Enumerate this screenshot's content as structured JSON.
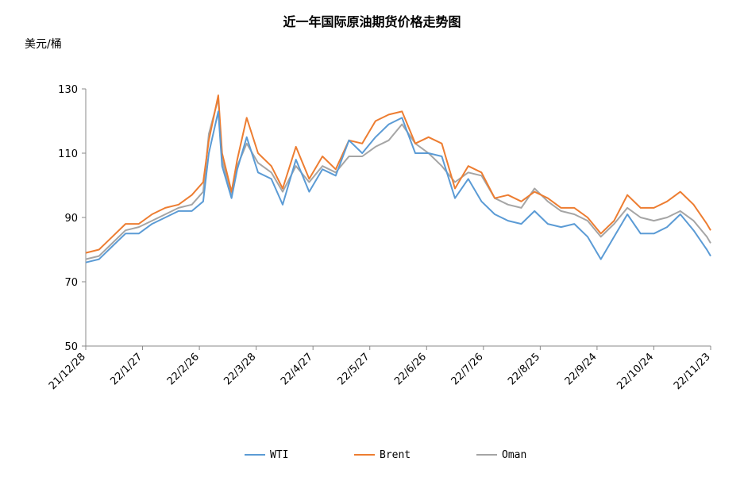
{
  "chart_data": {
    "type": "line",
    "title": "近一年国际原油期货价格走势图",
    "ylabel": "美元/桶",
    "xlabel": "",
    "ylim": [
      50,
      130
    ],
    "yticks": [
      50,
      70,
      90,
      110,
      130
    ],
    "xlim": [
      "2021-12-28",
      "2022-11-23"
    ],
    "xticks": [
      "21/12/28",
      "22/1/27",
      "22/2/26",
      "22/3/28",
      "22/4/27",
      "22/5/27",
      "22/6/26",
      "22/7/26",
      "22/8/25",
      "22/9/24",
      "22/10/24",
      "22/11/23"
    ],
    "grid": false,
    "legend_position": "bottom",
    "series": [
      {
        "name": "WTI",
        "color": "#5B9BD5",
        "points": [
          [
            "2021-12-28",
            76
          ],
          [
            "2022-01-04",
            77
          ],
          [
            "2022-01-11",
            81
          ],
          [
            "2022-01-18",
            85
          ],
          [
            "2022-01-25",
            85
          ],
          [
            "2022-02-01",
            88
          ],
          [
            "2022-02-08",
            90
          ],
          [
            "2022-02-15",
            92
          ],
          [
            "2022-02-22",
            92
          ],
          [
            "2022-02-28",
            95
          ],
          [
            "2022-03-03",
            110
          ],
          [
            "2022-03-08",
            123
          ],
          [
            "2022-03-10",
            106
          ],
          [
            "2022-03-15",
            96
          ],
          [
            "2022-03-18",
            105
          ],
          [
            "2022-03-23",
            115
          ],
          [
            "2022-03-29",
            104
          ],
          [
            "2022-04-05",
            102
          ],
          [
            "2022-04-11",
            94
          ],
          [
            "2022-04-18",
            108
          ],
          [
            "2022-04-25",
            98
          ],
          [
            "2022-05-02",
            105
          ],
          [
            "2022-05-09",
            103
          ],
          [
            "2022-05-16",
            114
          ],
          [
            "2022-05-23",
            110
          ],
          [
            "2022-05-30",
            115
          ],
          [
            "2022-06-06",
            119
          ],
          [
            "2022-06-13",
            121
          ],
          [
            "2022-06-20",
            110
          ],
          [
            "2022-06-27",
            110
          ],
          [
            "2022-07-04",
            109
          ],
          [
            "2022-07-11",
            96
          ],
          [
            "2022-07-18",
            102
          ],
          [
            "2022-07-25",
            95
          ],
          [
            "2022-08-01",
            91
          ],
          [
            "2022-08-08",
            89
          ],
          [
            "2022-08-15",
            88
          ],
          [
            "2022-08-22",
            92
          ],
          [
            "2022-08-29",
            88
          ],
          [
            "2022-09-05",
            87
          ],
          [
            "2022-09-12",
            88
          ],
          [
            "2022-09-19",
            84
          ],
          [
            "2022-09-26",
            77
          ],
          [
            "2022-10-03",
            84
          ],
          [
            "2022-10-10",
            91
          ],
          [
            "2022-10-17",
            85
          ],
          [
            "2022-10-24",
            85
          ],
          [
            "2022-10-31",
            87
          ],
          [
            "2022-11-07",
            91
          ],
          [
            "2022-11-14",
            86
          ],
          [
            "2022-11-21",
            80
          ],
          [
            "2022-11-23",
            78
          ]
        ]
      },
      {
        "name": "Brent",
        "color": "#ED7D31",
        "points": [
          [
            "2021-12-28",
            79
          ],
          [
            "2022-01-04",
            80
          ],
          [
            "2022-01-11",
            84
          ],
          [
            "2022-01-18",
            88
          ],
          [
            "2022-01-25",
            88
          ],
          [
            "2022-02-01",
            91
          ],
          [
            "2022-02-08",
            93
          ],
          [
            "2022-02-15",
            94
          ],
          [
            "2022-02-22",
            97
          ],
          [
            "2022-02-28",
            101
          ],
          [
            "2022-03-03",
            114
          ],
          [
            "2022-03-08",
            128
          ],
          [
            "2022-03-10",
            110
          ],
          [
            "2022-03-15",
            98
          ],
          [
            "2022-03-18",
            108
          ],
          [
            "2022-03-23",
            121
          ],
          [
            "2022-03-29",
            110
          ],
          [
            "2022-04-05",
            106
          ],
          [
            "2022-04-11",
            99
          ],
          [
            "2022-04-18",
            112
          ],
          [
            "2022-04-25",
            102
          ],
          [
            "2022-05-02",
            109
          ],
          [
            "2022-05-09",
            105
          ],
          [
            "2022-05-16",
            114
          ],
          [
            "2022-05-23",
            113
          ],
          [
            "2022-05-30",
            120
          ],
          [
            "2022-06-06",
            122
          ],
          [
            "2022-06-13",
            123
          ],
          [
            "2022-06-20",
            113
          ],
          [
            "2022-06-27",
            115
          ],
          [
            "2022-07-04",
            113
          ],
          [
            "2022-07-11",
            99
          ],
          [
            "2022-07-18",
            106
          ],
          [
            "2022-07-25",
            104
          ],
          [
            "2022-08-01",
            96
          ],
          [
            "2022-08-08",
            97
          ],
          [
            "2022-08-15",
            95
          ],
          [
            "2022-08-22",
            98
          ],
          [
            "2022-08-29",
            96
          ],
          [
            "2022-09-05",
            93
          ],
          [
            "2022-09-12",
            93
          ],
          [
            "2022-09-19",
            90
          ],
          [
            "2022-09-26",
            85
          ],
          [
            "2022-10-03",
            89
          ],
          [
            "2022-10-10",
            97
          ],
          [
            "2022-10-17",
            93
          ],
          [
            "2022-10-24",
            93
          ],
          [
            "2022-10-31",
            95
          ],
          [
            "2022-11-07",
            98
          ],
          [
            "2022-11-14",
            94
          ],
          [
            "2022-11-21",
            88
          ],
          [
            "2022-11-23",
            86
          ]
        ]
      },
      {
        "name": "Oman",
        "color": "#A5A5A5",
        "points": [
          [
            "2021-12-28",
            77
          ],
          [
            "2022-01-04",
            78
          ],
          [
            "2022-01-11",
            82
          ],
          [
            "2022-01-18",
            86
          ],
          [
            "2022-01-25",
            87
          ],
          [
            "2022-02-01",
            89
          ],
          [
            "2022-02-08",
            91
          ],
          [
            "2022-02-15",
            93
          ],
          [
            "2022-02-22",
            94
          ],
          [
            "2022-02-28",
            98
          ],
          [
            "2022-03-03",
            116
          ],
          [
            "2022-03-08",
            127
          ],
          [
            "2022-03-10",
            108
          ],
          [
            "2022-03-15",
            97
          ],
          [
            "2022-03-18",
            106
          ],
          [
            "2022-03-23",
            113
          ],
          [
            "2022-03-29",
            107
          ],
          [
            "2022-04-05",
            104
          ],
          [
            "2022-04-11",
            98
          ],
          [
            "2022-04-18",
            106
          ],
          [
            "2022-04-25",
            101
          ],
          [
            "2022-05-02",
            106
          ],
          [
            "2022-05-09",
            104
          ],
          [
            "2022-05-16",
            109
          ],
          [
            "2022-05-23",
            109
          ],
          [
            "2022-05-30",
            112
          ],
          [
            "2022-06-06",
            114
          ],
          [
            "2022-06-13",
            119
          ],
          [
            "2022-06-20",
            113
          ],
          [
            "2022-06-27",
            110
          ],
          [
            "2022-07-04",
            106
          ],
          [
            "2022-07-11",
            101
          ],
          [
            "2022-07-18",
            104
          ],
          [
            "2022-07-25",
            103
          ],
          [
            "2022-08-01",
            96
          ],
          [
            "2022-08-08",
            94
          ],
          [
            "2022-08-15",
            93
          ],
          [
            "2022-08-22",
            99
          ],
          [
            "2022-08-29",
            95
          ],
          [
            "2022-09-05",
            92
          ],
          [
            "2022-09-12",
            91
          ],
          [
            "2022-09-19",
            89
          ],
          [
            "2022-09-26",
            84
          ],
          [
            "2022-10-03",
            88
          ],
          [
            "2022-10-10",
            93
          ],
          [
            "2022-10-17",
            90
          ],
          [
            "2022-10-24",
            89
          ],
          [
            "2022-10-31",
            90
          ],
          [
            "2022-11-07",
            92
          ],
          [
            "2022-11-14",
            89
          ],
          [
            "2022-11-21",
            84
          ],
          [
            "2022-11-23",
            82
          ]
        ]
      }
    ]
  }
}
